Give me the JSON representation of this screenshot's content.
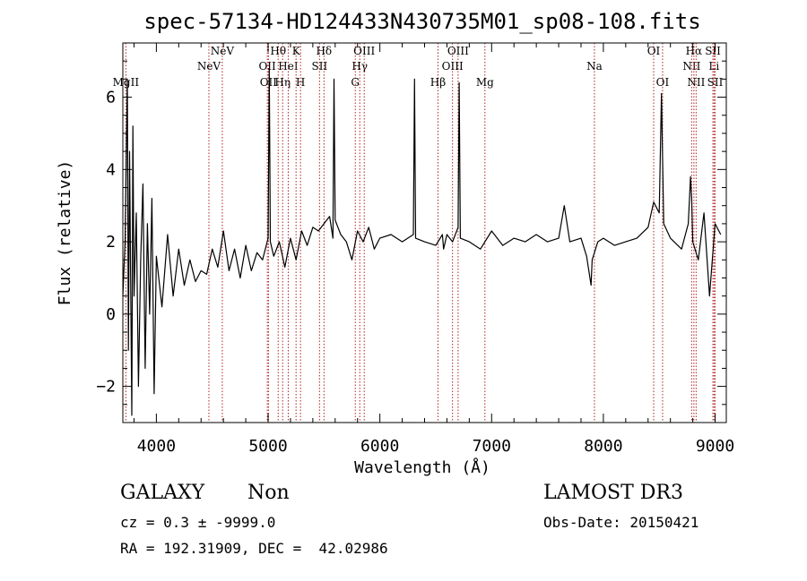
{
  "chart_data": {
    "type": "line",
    "title": "spec-57134-HD124433N430735M01_sp08-108.fits",
    "xlabel": "Wavelength (Å)",
    "ylabel": "Flux (relative)",
    "xlim": [
      3700,
      9100
    ],
    "ylim": [
      -3.0,
      7.5
    ],
    "x_ticks": [
      4000,
      5000,
      6000,
      7000,
      8000,
      9000
    ],
    "y_ticks": [
      -2,
      0,
      2,
      4,
      6
    ],
    "grid": false,
    "colors": {
      "spectrum": "#000000",
      "line_markers": "#b22222"
    },
    "series": [
      {
        "x": [
          3700,
          3720,
          3740,
          3750,
          3760,
          3770,
          3780,
          3790,
          3800,
          3820,
          3840,
          3860,
          3880,
          3900,
          3920,
          3940,
          3960,
          3980,
          4000,
          4050,
          4100,
          4150,
          4200,
          4250,
          4300,
          4350,
          4400,
          4450,
          4500,
          4550,
          4600,
          4650,
          4700,
          4750,
          4800,
          4850,
          4900,
          4950,
          5000,
          5010,
          5020,
          5050,
          5100,
          5150,
          5200,
          5250,
          5300,
          5350,
          5400,
          5450,
          5500,
          5550,
          5580,
          5590,
          5600,
          5650,
          5700,
          5750,
          5800,
          5850,
          5900,
          5950,
          6000,
          6100,
          6200,
          6300,
          6310,
          6320,
          6400,
          6500,
          6560,
          6570,
          6600,
          6650,
          6700,
          6710,
          6720,
          6800,
          6900,
          7000,
          7100,
          7200,
          7300,
          7400,
          7500,
          7600,
          7650,
          7700,
          7800,
          7850,
          7890,
          7900,
          7950,
          8000,
          8100,
          8200,
          8300,
          8400,
          8450,
          8500,
          8520,
          8540,
          8600,
          8700,
          8760,
          8780,
          8790,
          8800,
          8850,
          8900,
          8950,
          9000,
          9050
        ],
        "y": [
          0.5,
          2.0,
          6.5,
          -1.0,
          4.5,
          1.0,
          -2.8,
          5.2,
          0.5,
          2.8,
          -2.0,
          1.5,
          3.6,
          -1.5,
          2.5,
          0.0,
          3.2,
          -2.2,
          1.6,
          0.2,
          2.2,
          0.5,
          1.8,
          0.8,
          1.5,
          0.9,
          1.2,
          1.1,
          1.8,
          1.3,
          2.3,
          1.2,
          1.8,
          1.0,
          1.9,
          1.2,
          1.7,
          1.5,
          2.1,
          6.8,
          2.0,
          1.6,
          2.0,
          1.3,
          2.1,
          1.5,
          2.3,
          1.9,
          2.4,
          2.3,
          2.5,
          2.7,
          2.1,
          6.5,
          2.6,
          2.2,
          2.0,
          1.5,
          2.3,
          2.0,
          2.4,
          1.8,
          2.1,
          2.2,
          2.0,
          2.2,
          6.5,
          2.1,
          2.0,
          1.9,
          2.2,
          1.8,
          2.2,
          2.0,
          2.4,
          6.4,
          2.1,
          2.0,
          1.8,
          2.3,
          1.9,
          2.1,
          2.0,
          2.2,
          2.0,
          2.1,
          3.0,
          2.0,
          2.1,
          1.6,
          0.8,
          1.5,
          2.0,
          2.1,
          1.9,
          2.0,
          2.1,
          2.4,
          3.1,
          2.8,
          6.1,
          2.5,
          2.1,
          1.8,
          2.5,
          3.8,
          3.2,
          2.0,
          1.5,
          2.8,
          0.5,
          2.5,
          2.2
        ]
      }
    ],
    "markers": [
      {
        "x": 3727,
        "label": "MgII",
        "row": 3
      },
      {
        "x": 4470,
        "label": "NeV",
        "row": 2
      },
      {
        "x": 4590,
        "label": "NeV",
        "row": 1
      },
      {
        "x": 4993,
        "label": "OII",
        "row": 2
      },
      {
        "x": 5003,
        "label": "OII",
        "row": 3
      },
      {
        "x": 5090,
        "label": "Hθ",
        "row": 1
      },
      {
        "x": 5130,
        "label": "Hη",
        "row": 3
      },
      {
        "x": 5180,
        "label": "HeI",
        "row": 2
      },
      {
        "x": 5250,
        "label": "K",
        "row": 1
      },
      {
        "x": 5290,
        "label": "H",
        "row": 3
      },
      {
        "x": 5460,
        "label": "SII",
        "row": 2
      },
      {
        "x": 5500,
        "label": "Hδ",
        "row": 1
      },
      {
        "x": 5780,
        "label": "G",
        "row": 3
      },
      {
        "x": 5820,
        "label": "Hγ",
        "row": 2
      },
      {
        "x": 5860,
        "label": "OIII",
        "row": 1
      },
      {
        "x": 6520,
        "label": "Hβ",
        "row": 3
      },
      {
        "x": 6650,
        "label": "OIII",
        "row": 2
      },
      {
        "x": 6700,
        "label": "OIII",
        "row": 1
      },
      {
        "x": 6940,
        "label": "Mg",
        "row": 3
      },
      {
        "x": 7920,
        "label": "Na",
        "row": 2
      },
      {
        "x": 8450,
        "label": "OI",
        "row": 1
      },
      {
        "x": 8530,
        "label": "OI",
        "row": 3
      },
      {
        "x": 8790,
        "label": "NII",
        "row": 2
      },
      {
        "x": 8810,
        "label": "Hα",
        "row": 1
      },
      {
        "x": 8830,
        "label": "NII",
        "row": 3
      },
      {
        "x": 8980,
        "label": "SII",
        "row": 1
      },
      {
        "x": 8990,
        "label": "Li",
        "row": 2
      },
      {
        "x": 9000,
        "label": "SII",
        "row": 3
      }
    ]
  },
  "info": {
    "class": "GALAXY",
    "subclass": "Non",
    "survey": "LAMOST DR3",
    "cz_line": "cz = 0.3 ± -9999.0",
    "obs_date_line": "Obs-Date: 20150421",
    "radec_line": "RA = 192.31909, DEC =  42.02986"
  }
}
